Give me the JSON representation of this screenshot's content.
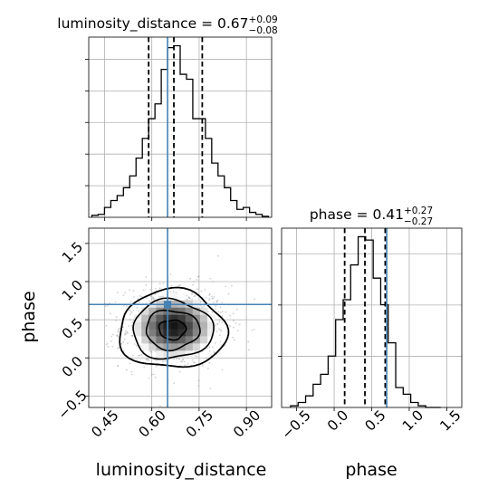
{
  "chart_data": {
    "type": "corner",
    "parameters": [
      "luminosity_distance",
      "phase"
    ],
    "truth": {
      "luminosity_distance": 0.65,
      "phase": 0.7
    },
    "colors": {
      "truth": "#4682b4",
      "hist": "#000000",
      "samples": "#9a9a9a"
    },
    "grid": true,
    "panels": {
      "luminosity_distance_hist": {
        "title": {
          "name": "luminosity_distance",
          "median": "0.67",
          "plus": "+0.09",
          "minus": "−0.08"
        },
        "xlim": [
          0.4,
          0.98
        ],
        "quantiles": [
          0.59,
          0.67,
          0.76
        ],
        "bin_edges": [
          0.41,
          0.43,
          0.45,
          0.47,
          0.49,
          0.51,
          0.53,
          0.55,
          0.57,
          0.59,
          0.61,
          0.63,
          0.65,
          0.67,
          0.69,
          0.71,
          0.73,
          0.75,
          0.77,
          0.79,
          0.81,
          0.83,
          0.85,
          0.87,
          0.89,
          0.91,
          0.93,
          0.95,
          0.97
        ],
        "counts": [
          2,
          3,
          10,
          17,
          22,
          30,
          42,
          60,
          80,
          100,
          115,
          150,
          172,
          174,
          145,
          140,
          100,
          100,
          80,
          55,
          42,
          30,
          17,
          8,
          10,
          5,
          3,
          1
        ]
      },
      "phase_hist": {
        "title": {
          "name": "phase",
          "median": "0.41",
          "plus": "+0.27",
          "minus": "−0.27"
        },
        "xlim": [
          -0.7,
          1.7
        ],
        "xticks": [
          -0.5,
          0.0,
          0.5,
          1.0,
          1.5
        ],
        "xtick_labels": [
          "−0.5",
          "0.0",
          "0.5",
          "1.0",
          "1.5"
        ],
        "xlabel": "phase",
        "quantiles": [
          0.14,
          0.41,
          0.68
        ],
        "bin_edges": [
          -0.58,
          -0.48,
          -0.38,
          -0.28,
          -0.18,
          -0.08,
          0.02,
          0.12,
          0.22,
          0.32,
          0.42,
          0.52,
          0.62,
          0.72,
          0.82,
          0.92,
          1.02,
          1.12,
          1.22,
          1.32,
          1.42
        ],
        "counts": [
          1,
          3,
          7,
          14,
          20,
          31,
          53,
          65,
          86,
          103,
          101,
          78,
          62,
          39,
          12,
          8,
          3,
          1,
          0,
          0
        ]
      },
      "joint": {
        "xlim": [
          0.4,
          0.98
        ],
        "ylim": [
          -0.65,
          1.7
        ],
        "xticks": [
          0.45,
          0.6,
          0.75,
          0.9
        ],
        "xtick_labels": [
          "0.45",
          "0.60",
          "0.75",
          "0.90"
        ],
        "yticks": [
          -0.5,
          0.0,
          0.5,
          1.0,
          1.5
        ],
        "ytick_labels": [
          "−0.5",
          "0.0",
          "0.5",
          "1.0",
          "1.5"
        ],
        "xlabel": "luminosity_distance",
        "ylabel": "phase",
        "mean": [
          0.67,
          0.41
        ],
        "std": [
          0.085,
          0.27
        ],
        "contour_levels_sigma": [
          0.5,
          1.0,
          1.5,
          2.0
        ]
      }
    }
  }
}
